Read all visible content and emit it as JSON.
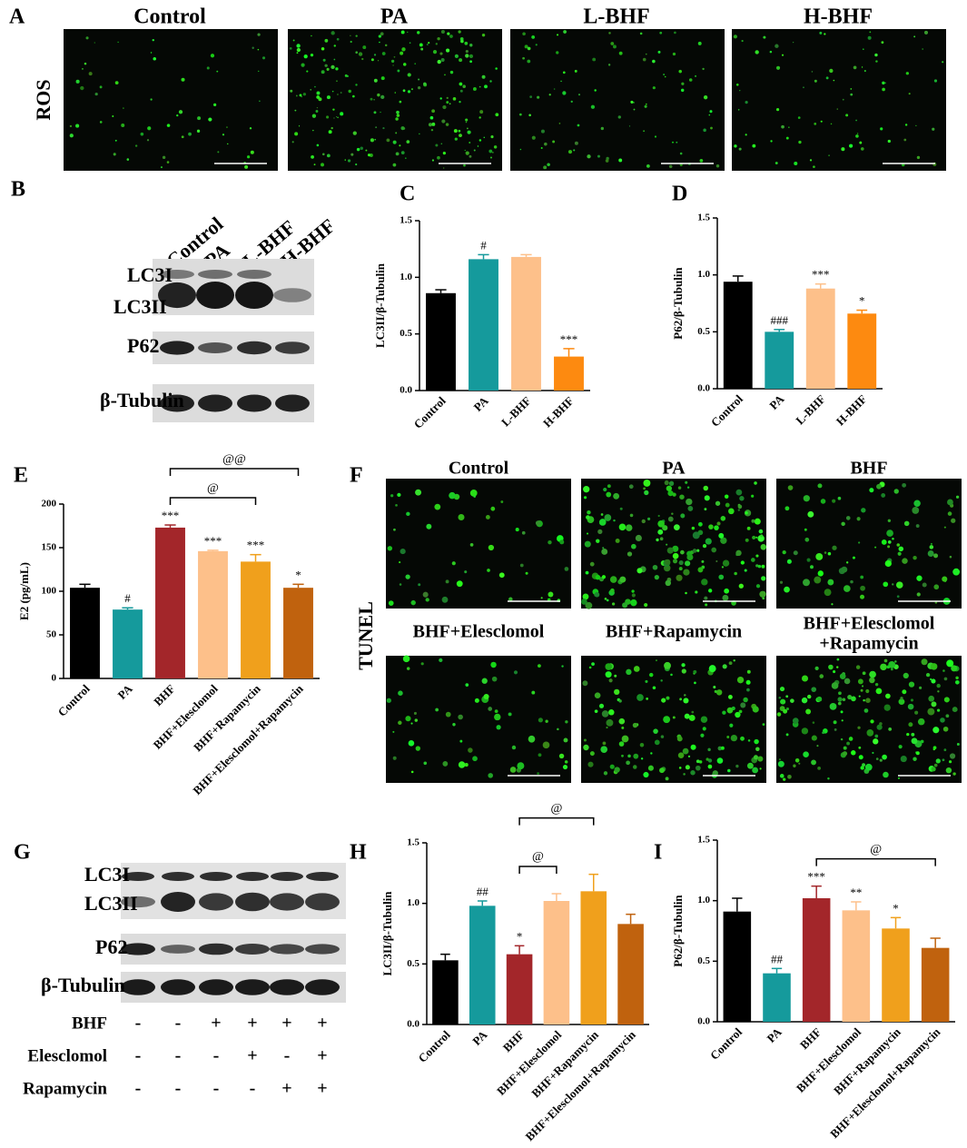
{
  "ros_panel": {
    "panel": "A",
    "label": "ROS",
    "titles": [
      "Control",
      "PA",
      "L-BHF",
      "H-BHF"
    ]
  },
  "blot_b": {
    "panel": "B",
    "lanes": [
      "Control",
      "PA",
      "L-BHF",
      "H-BHF"
    ],
    "bands": [
      "LC3I",
      "LC3II",
      "P62",
      "β-Tubulin"
    ]
  },
  "tunel_panel": {
    "panel": "F",
    "label": "TUNEL",
    "titles": [
      [
        "Control"
      ],
      [
        "PA"
      ],
      [
        "BHF"
      ],
      [
        "BHF+Elesclomol"
      ],
      [
        "BHF+Rapamycin"
      ],
      [
        "BHF+Elesclomol",
        "+Rapamycin"
      ]
    ]
  },
  "blot_g": {
    "panel": "G",
    "bands": [
      "LC3I",
      "LC3II",
      "P62",
      "β-Tubulin"
    ],
    "treatments": [
      {
        "name": "BHF",
        "signs": [
          "-",
          "-",
          "+",
          "+",
          "+",
          "+"
        ]
      },
      {
        "name": "Elesclomol",
        "signs": [
          "-",
          "-",
          "-",
          "+",
          "-",
          "+"
        ]
      },
      {
        "name": "Rapamycin",
        "signs": [
          "-",
          "-",
          "-",
          "-",
          "+",
          "+"
        ]
      }
    ]
  },
  "chart_data": [
    {
      "type": "bar",
      "panel": "C",
      "y_label": "LC3II/β-Tubulin",
      "categories": [
        "Control",
        "PA",
        "L-BHF",
        "H-BHF"
      ],
      "values": [
        0.86,
        1.16,
        1.18,
        0.3
      ],
      "errors": [
        0.03,
        0.04,
        0.02,
        0.07
      ],
      "colors": [
        "#000000",
        "#159a9c",
        "#fdc08a",
        "#fd8a10"
      ],
      "ylim": [
        0,
        1.5
      ],
      "yticks": [
        {
          "value": 0,
          "label": "0.0"
        },
        0.5,
        {
          "value": 1,
          "label": "1.0"
        },
        1.5
      ],
      "annotations": [
        {
          "category": "PA",
          "text": "#"
        },
        {
          "category": "H-BHF",
          "text": "***"
        }
      ]
    },
    {
      "type": "bar",
      "panel": "D",
      "y_label": "P62/β-Tubulin",
      "categories": [
        "Control",
        "PA",
        "L-BHF",
        "H-BHF"
      ],
      "values": [
        0.94,
        0.5,
        0.88,
        0.66
      ],
      "errors": [
        0.05,
        0.02,
        0.04,
        0.03
      ],
      "colors": [
        "#000000",
        "#159a9c",
        "#fdc08a",
        "#fd8a10"
      ],
      "ylim": [
        0,
        1.5
      ],
      "yticks": [
        {
          "value": 0,
          "label": "0.0"
        },
        0.5,
        {
          "value": 1,
          "label": "1.0"
        },
        1.5
      ],
      "annotations": [
        {
          "category": "PA",
          "text": "###"
        },
        {
          "category": "L-BHF",
          "text": "***"
        },
        {
          "category": "H-BHF",
          "text": "*"
        }
      ]
    },
    {
      "type": "bar",
      "panel": "E",
      "y_label": "E2 (pg/mL)",
      "categories": [
        "Control",
        "PA",
        "BHF",
        "BHF+Elesclomol",
        "BHF+Rapamycin",
        "BHF+Elesclomol+Rapamycin"
      ],
      "values": [
        104,
        79,
        173,
        146,
        134,
        104
      ],
      "errors": [
        4,
        2,
        3,
        1,
        8,
        4
      ],
      "colors": [
        "#000000",
        "#159a9c",
        "#a3262a",
        "#fdc08a",
        "#f0a01c",
        "#c0620e"
      ],
      "ylim": [
        0,
        200
      ],
      "yticks": [
        0,
        50,
        100,
        150,
        200
      ],
      "annotations": [
        {
          "category": "PA",
          "text": "#"
        },
        {
          "category": "BHF",
          "text": "***"
        },
        {
          "category": "BHF+Elesclomol",
          "text": "***"
        },
        {
          "category": "BHF+Rapamycin",
          "text": "***"
        },
        {
          "category": "BHF+Elesclomol+Rapamycin",
          "text": "*"
        }
      ],
      "brackets": [
        {
          "from": "BHF",
          "to": "BHF+Rapamycin",
          "text": "@"
        },
        {
          "from": "BHF",
          "to": "BHF+Elesclomol+Rapamycin",
          "text": "@@"
        }
      ]
    },
    {
      "type": "bar",
      "panel": "H",
      "y_label": "LC3II/β-Tubulin",
      "categories": [
        "Control",
        "PA",
        "BHF",
        "BHF+Elesclomol",
        "BHF+Rapamycin",
        "BHF+Elesclomol+Rapamycin"
      ],
      "values": [
        0.53,
        0.98,
        0.58,
        1.02,
        1.1,
        0.83
      ],
      "errors": [
        0.05,
        0.04,
        0.07,
        0.06,
        0.14,
        0.08
      ],
      "colors": [
        "#000000",
        "#159a9c",
        "#a3262a",
        "#fdc08a",
        "#f0a01c",
        "#c0620e"
      ],
      "ylim": [
        0,
        1.5
      ],
      "yticks": [
        {
          "value": 0,
          "label": "0.0"
        },
        0.5,
        {
          "value": 1,
          "label": "1.0"
        },
        1.5
      ],
      "annotations": [
        {
          "category": "PA",
          "text": "##"
        },
        {
          "category": "BHF",
          "text": "*"
        }
      ],
      "brackets": [
        {
          "from": "BHF",
          "to": "BHF+Elesclomol",
          "text": "@"
        },
        {
          "from": "BHF",
          "to": "BHF+Rapamycin",
          "text": "@"
        }
      ]
    },
    {
      "type": "bar",
      "panel": "I",
      "y_label": "P62/β-Tubulin",
      "categories": [
        "Control",
        "PA",
        "BHF",
        "BHF+Elesclomol",
        "BHF+Rapamycin",
        "BHF+Elesclomol+Rapamycin"
      ],
      "values": [
        0.91,
        0.4,
        1.02,
        0.92,
        0.77,
        0.61
      ],
      "errors": [
        0.11,
        0.04,
        0.1,
        0.07,
        0.09,
        0.08
      ],
      "colors": [
        "#000000",
        "#159a9c",
        "#a3262a",
        "#fdc08a",
        "#f0a01c",
        "#c0620e"
      ],
      "ylim": [
        0,
        1.5
      ],
      "yticks": [
        {
          "value": 0,
          "label": "0.0"
        },
        0.5,
        {
          "value": 1,
          "label": "1.0"
        },
        1.5
      ],
      "annotations": [
        {
          "category": "PA",
          "text": "##"
        },
        {
          "category": "BHF",
          "text": "***"
        },
        {
          "category": "BHF+Elesclomol",
          "text": "**"
        },
        {
          "category": "BHF+Rapamycin",
          "text": "*"
        }
      ],
      "brackets": [
        {
          "from": "BHF",
          "to": "BHF+Elesclomol+Rapamycin",
          "text": "@"
        }
      ]
    }
  ]
}
